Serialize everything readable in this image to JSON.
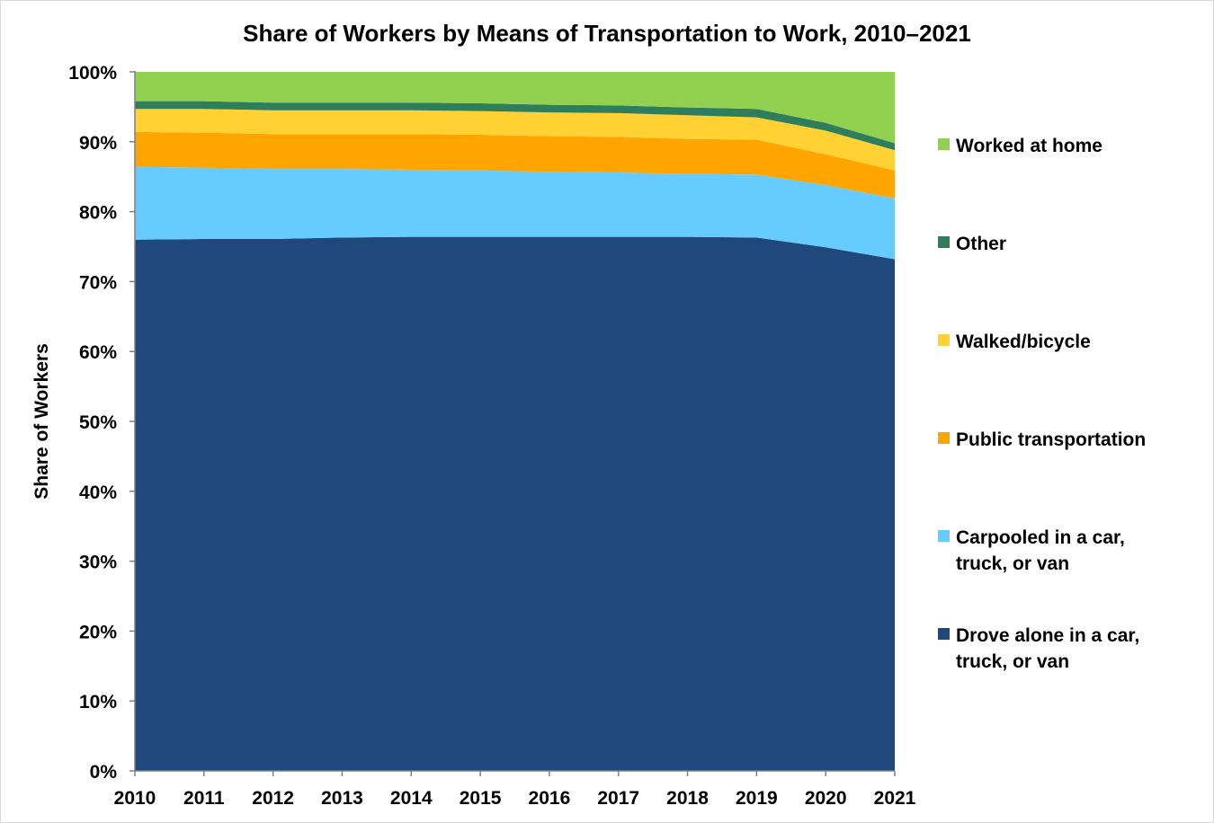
{
  "chart_data": {
    "type": "area",
    "stacked": true,
    "title": "Share of Workers by Means of Transportation to Work, 2010–2021",
    "xlabel": "",
    "ylabel": "Share of Workers",
    "ylim": [
      0,
      100
    ],
    "y_tick_labels": [
      "0%",
      "10%",
      "20%",
      "30%",
      "40%",
      "50%",
      "60%",
      "70%",
      "80%",
      "90%",
      "100%"
    ],
    "x": [
      "2010",
      "2011",
      "2012",
      "2013",
      "2014",
      "2015",
      "2016",
      "2017",
      "2018",
      "2019",
      "2020",
      "2021"
    ],
    "grid": false,
    "legend_position": "right",
    "series": [
      {
        "name": "Drove alone in a car, truck, or van",
        "legend_lines": [
          "Drove alone in a car,",
          "truck, or van"
        ],
        "color": "#1f497d",
        "values": [
          76.0,
          76.1,
          76.1,
          76.3,
          76.4,
          76.4,
          76.4,
          76.4,
          76.4,
          76.3,
          74.9,
          73.2
        ]
      },
      {
        "name": "Carpooled in a car, truck, or van",
        "legend_lines": [
          "Carpooled in a car,",
          "truck, or van"
        ],
        "color": "#66ccff",
        "values": [
          10.4,
          10.2,
          10.0,
          9.8,
          9.6,
          9.5,
          9.3,
          9.2,
          9.0,
          9.0,
          8.9,
          8.7
        ]
      },
      {
        "name": "Public transportation",
        "legend_lines": [
          "Public transportation"
        ],
        "color": "#ffa500",
        "values": [
          5.0,
          5.0,
          5.0,
          5.0,
          5.1,
          5.1,
          5.1,
          5.1,
          5.0,
          5.0,
          4.4,
          4.0
        ]
      },
      {
        "name": "Walked/bicycle",
        "legend_lines": [
          "Walked/bicycle"
        ],
        "color": "#ffd133",
        "values": [
          3.3,
          3.4,
          3.4,
          3.4,
          3.4,
          3.4,
          3.4,
          3.4,
          3.4,
          3.2,
          3.4,
          2.9
        ]
      },
      {
        "name": "Other",
        "legend_lines": [
          "Other"
        ],
        "color": "#2e7d5b",
        "values": [
          1.1,
          1.1,
          1.1,
          1.1,
          1.1,
          1.1,
          1.1,
          1.1,
          1.1,
          1.2,
          1.1,
          1.0
        ]
      },
      {
        "name": "Worked at home",
        "legend_lines": [
          "Worked at home"
        ],
        "color": "#92d050",
        "values": [
          4.2,
          4.2,
          4.4,
          4.4,
          4.4,
          4.5,
          4.7,
          4.8,
          5.1,
          5.3,
          7.3,
          10.2
        ]
      }
    ]
  }
}
